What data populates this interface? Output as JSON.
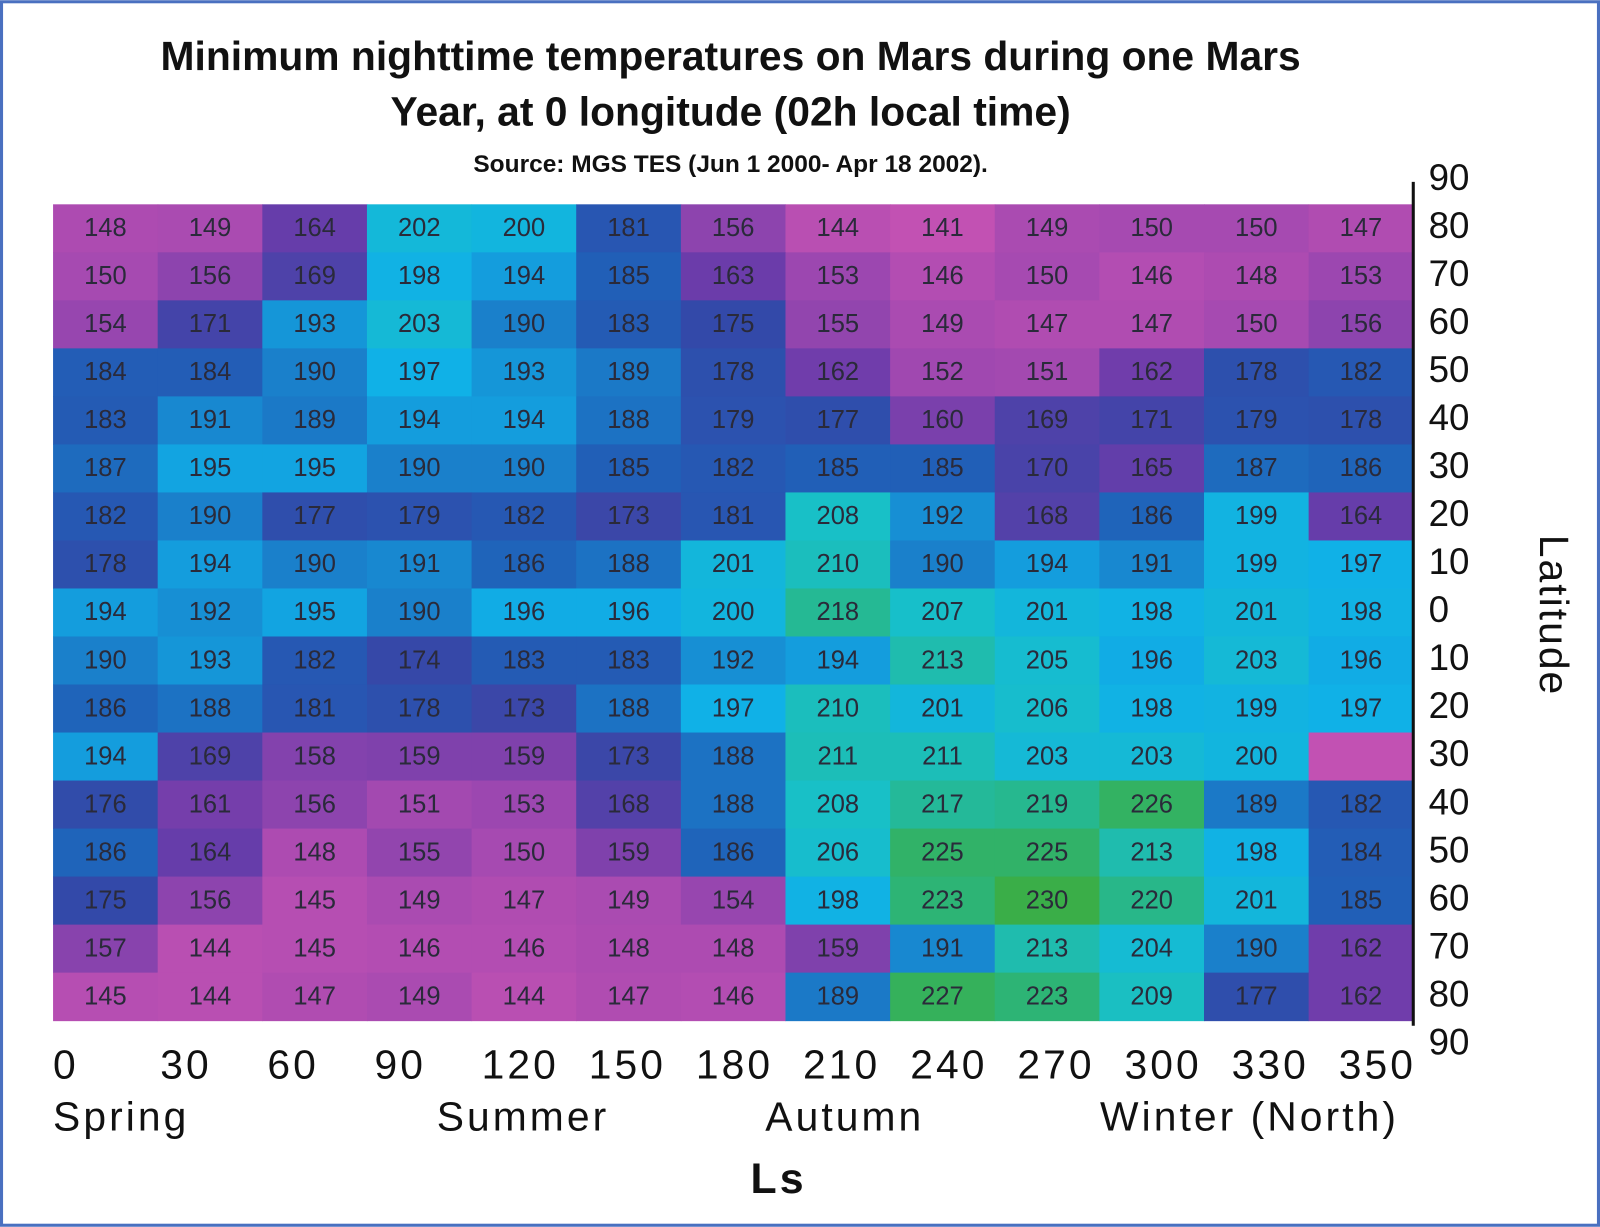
{
  "chart_data": {
    "type": "heatmap",
    "title": [
      "Minimum nighttime temperatures on Mars during one Mars",
      "Year, at 0 longitude (02h local time)"
    ],
    "subtitle": "Source: MGS TES (Jun 1 2000- Apr 18  2002).",
    "x_label": "Ls",
    "y_label": "Latitude",
    "x": [
      0,
      30,
      60,
      90,
      120,
      150,
      180,
      210,
      240,
      270,
      300,
      330,
      350
    ],
    "yticks": [
      90,
      80,
      70,
      60,
      50,
      40,
      30,
      20,
      10,
      0,
      10,
      20,
      30,
      40,
      50,
      60,
      70,
      80,
      90
    ],
    "annotations": [
      "Spring",
      "Summer",
      "Autumn",
      "Winter (North)"
    ],
    "colormap": [
      "#c251b3",
      "#a048b0",
      "#6a3caa",
      "#3448a8",
      "#2060b8",
      "#10b0e8",
      "#18c0c8",
      "#26b890",
      "#3aae48"
    ],
    "missing_color": "#c251b3",
    "values": [
      [
        148,
        149,
        164,
        202,
        200,
        181,
        156,
        144,
        141,
        149,
        150,
        150,
        147
      ],
      [
        150,
        156,
        169,
        198,
        194,
        185,
        163,
        153,
        146,
        150,
        146,
        148,
        153
      ],
      [
        154,
        171,
        193,
        203,
        190,
        183,
        175,
        155,
        149,
        147,
        147,
        150,
        156
      ],
      [
        184,
        184,
        190,
        197,
        193,
        189,
        178,
        162,
        152,
        151,
        162,
        178,
        182
      ],
      [
        183,
        191,
        189,
        194,
        194,
        188,
        179,
        177,
        160,
        169,
        171,
        179,
        178
      ],
      [
        187,
        195,
        195,
        190,
        190,
        185,
        182,
        185,
        185,
        170,
        165,
        187,
        186
      ],
      [
        182,
        190,
        177,
        179,
        182,
        173,
        181,
        208,
        192,
        168,
        186,
        199,
        164
      ],
      [
        178,
        194,
        190,
        191,
        186,
        188,
        201,
        210,
        190,
        194,
        191,
        199,
        197
      ],
      [
        194,
        192,
        195,
        190,
        196,
        196,
        200,
        218,
        207,
        201,
        198,
        201,
        198
      ],
      [
        190,
        193,
        182,
        174,
        183,
        183,
        192,
        194,
        213,
        205,
        196,
        203,
        196
      ],
      [
        186,
        188,
        181,
        178,
        173,
        188,
        197,
        210,
        201,
        206,
        198,
        199,
        197
      ],
      [
        194,
        169,
        158,
        159,
        159,
        173,
        188,
        211,
        211,
        203,
        203,
        200,
        null
      ],
      [
        176,
        161,
        156,
        151,
        153,
        168,
        188,
        208,
        217,
        219,
        226,
        189,
        182
      ],
      [
        186,
        164,
        148,
        155,
        150,
        159,
        186,
        206,
        225,
        225,
        213,
        198,
        184
      ],
      [
        175,
        156,
        145,
        149,
        147,
        149,
        154,
        198,
        223,
        230,
        220,
        201,
        185
      ],
      [
        157,
        144,
        145,
        146,
        146,
        148,
        148,
        159,
        191,
        213,
        204,
        190,
        162
      ],
      [
        145,
        144,
        147,
        149,
        144,
        147,
        146,
        189,
        227,
        223,
        209,
        177,
        162
      ]
    ]
  }
}
